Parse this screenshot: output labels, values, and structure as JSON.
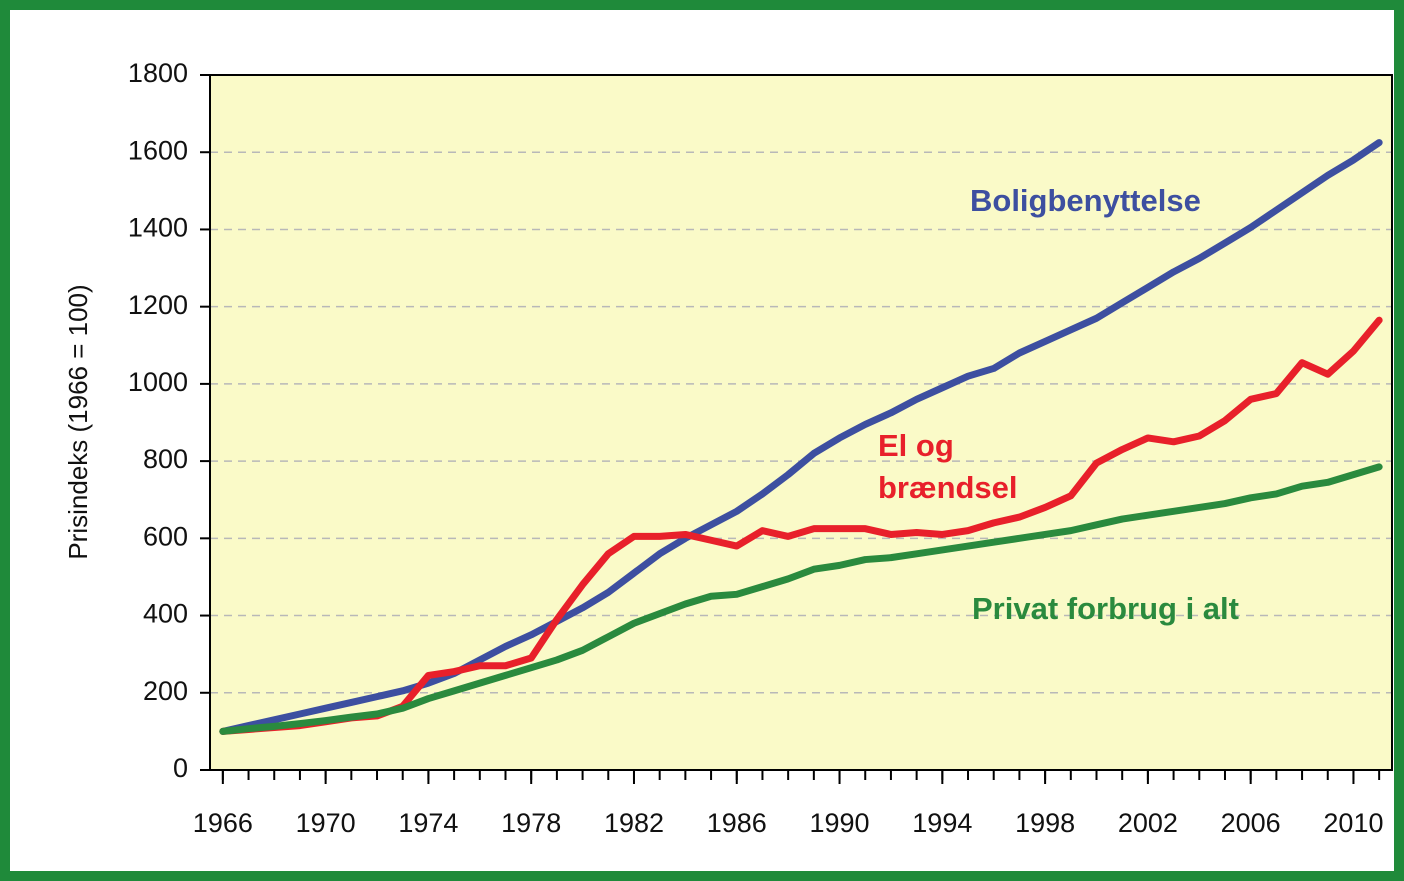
{
  "chart_data": {
    "type": "line",
    "y_label": "Prisindeks (1966 = 100)",
    "x": [
      1966,
      1967,
      1968,
      1969,
      1970,
      1971,
      1972,
      1973,
      1974,
      1975,
      1976,
      1977,
      1978,
      1979,
      1980,
      1981,
      1982,
      1983,
      1984,
      1985,
      1986,
      1987,
      1988,
      1989,
      1990,
      1991,
      1992,
      1993,
      1994,
      1995,
      1996,
      1997,
      1998,
      1999,
      2000,
      2001,
      2002,
      2003,
      2004,
      2005,
      2006,
      2007,
      2008,
      2009,
      2010,
      2011
    ],
    "series": [
      {
        "name": "Boligbenyttelse",
        "color": "#3d4fa0",
        "values": [
          100,
          115,
          130,
          145,
          160,
          175,
          190,
          205,
          225,
          250,
          285,
          320,
          350,
          385,
          420,
          460,
          510,
          560,
          600,
          635,
          670,
          715,
          765,
          820,
          860,
          895,
          925,
          960,
          990,
          1020,
          1040,
          1080,
          1110,
          1140,
          1170,
          1210,
          1250,
          1290,
          1325,
          1365,
          1405,
          1450,
          1495,
          1540,
          1580,
          1625
        ]
      },
      {
        "name": "El og brændsel",
        "color": "#e8202a",
        "values": [
          100,
          105,
          110,
          115,
          125,
          135,
          140,
          165,
          245,
          255,
          270,
          270,
          290,
          390,
          480,
          560,
          605,
          605,
          610,
          595,
          580,
          620,
          605,
          625,
          625,
          625,
          610,
          615,
          610,
          620,
          640,
          655,
          680,
          710,
          795,
          830,
          860,
          850,
          865,
          905,
          960,
          975,
          1055,
          1025,
          1085,
          1165
        ]
      },
      {
        "name": "Privat forbrug i alt",
        "color": "#2a8a3e",
        "values": [
          100,
          107,
          113,
          120,
          128,
          137,
          145,
          160,
          185,
          205,
          225,
          245,
          265,
          285,
          310,
          345,
          380,
          405,
          430,
          450,
          455,
          475,
          495,
          520,
          530,
          545,
          550,
          560,
          570,
          580,
          590,
          600,
          610,
          620,
          635,
          650,
          660,
          670,
          680,
          690,
          705,
          715,
          735,
          745,
          765,
          785
        ]
      }
    ],
    "xlim": [
      1965.5,
      2011.5
    ],
    "xticks": [
      1966,
      1970,
      1974,
      1978,
      1982,
      1986,
      1990,
      1994,
      1998,
      2002,
      2006,
      2010
    ],
    "ylim": [
      0,
      1800
    ],
    "yticks": [
      0,
      200,
      400,
      600,
      800,
      1000,
      1200,
      1400,
      1600,
      1800
    ],
    "grid": true,
    "background": "#fafac8",
    "frame_color": "#1f8a3a"
  }
}
